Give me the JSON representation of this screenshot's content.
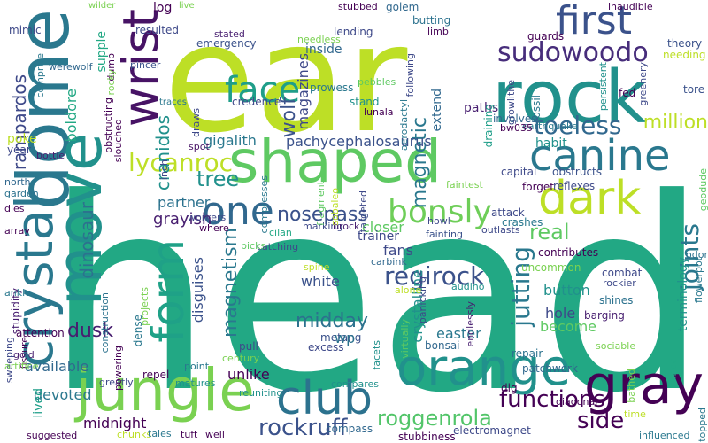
{
  "words": [
    {
      "text": "head",
      "color": "#22a884"
    },
    {
      "text": "ear",
      "color": "#bddf26"
    },
    {
      "text": "shaped",
      "color": "#5ec962"
    },
    {
      "text": "dome",
      "color": "#2a788e"
    },
    {
      "text": "rock",
      "color": "#21918c"
    },
    {
      "text": "jungle",
      "color": "#7ad151"
    },
    {
      "text": "orange",
      "color": "#21918c"
    },
    {
      "text": "canine",
      "color": "#2a788e"
    },
    {
      "text": "first",
      "color": "#3b528b"
    },
    {
      "text": "move",
      "color": "#21918c"
    },
    {
      "text": "crystal",
      "color": "#2a788e"
    },
    {
      "text": "club",
      "color": "#2c728e"
    },
    {
      "text": "gray",
      "color": "#440154"
    },
    {
      "text": "dark",
      "color": "#bddf26"
    },
    {
      "text": "wrist",
      "color": "#471365"
    },
    {
      "text": "form",
      "color": "#1fa187"
    },
    {
      "text": "one",
      "color": "#31688e"
    },
    {
      "text": "face",
      "color": "#1f9e89"
    },
    {
      "text": "sudowoodo",
      "color": "#472d7b"
    },
    {
      "text": "bonsly",
      "color": "#6ece58"
    },
    {
      "text": "lycanroc",
      "color": "#bddf26"
    },
    {
      "text": "rockruff",
      "color": "#3b528b"
    },
    {
      "text": "regirock",
      "color": "#3b528b"
    },
    {
      "text": "roggenrola",
      "color": "#52c569"
    },
    {
      "text": "functions",
      "color": "#440154"
    },
    {
      "text": "side",
      "color": "#440154"
    },
    {
      "text": "jutting",
      "color": "#2a788e"
    },
    {
      "text": "joints",
      "color": "#2a788e"
    },
    {
      "text": "tree",
      "color": "#21918c"
    },
    {
      "text": "toeless",
      "color": "#31688e"
    },
    {
      "text": "magnetic",
      "color": "#2a788e"
    },
    {
      "text": "magnetism",
      "color": "#2a788e"
    },
    {
      "text": "dinosaur",
      "color": "#2c728e"
    },
    {
      "text": "cranidos",
      "color": "#21918c"
    },
    {
      "text": "rampardos",
      "color": "#3e4989"
    },
    {
      "text": "nosepass",
      "color": "#3b528b"
    },
    {
      "text": "real",
      "color": "#5ec962"
    },
    {
      "text": "dusk",
      "color": "#481f70"
    },
    {
      "text": "midday",
      "color": "#2c728e"
    },
    {
      "text": "million",
      "color": "#bddf26"
    },
    {
      "text": "wolf",
      "color": "#3b528b"
    },
    {
      "text": "magazines",
      "color": "#3e4989"
    },
    {
      "text": "pachycephalosaurus",
      "color": "#3b528b"
    },
    {
      "text": "gigalith",
      "color": "#2a788e"
    },
    {
      "text": "boldore",
      "color": "#22a884"
    },
    {
      "text": "grayish",
      "color": "#481f70"
    },
    {
      "text": "partner",
      "color": "#2c728e"
    },
    {
      "text": "available",
      "color": "#31688e"
    },
    {
      "text": "devoted",
      "color": "#2a788e"
    },
    {
      "text": "midnight",
      "color": "#440154"
    },
    {
      "text": "crystalline",
      "color": "#21918c"
    },
    {
      "text": "easter",
      "color": "#2a788e"
    },
    {
      "text": "button",
      "color": "#21918c"
    },
    {
      "text": "hole",
      "color": "#3e4989"
    },
    {
      "text": "become",
      "color": "#5ec962"
    },
    {
      "text": "white",
      "color": "#3b528b"
    },
    {
      "text": "fans",
      "color": "#3e4989"
    },
    {
      "text": "closer",
      "color": "#5ec962"
    },
    {
      "text": "trainer",
      "color": "#3e4989"
    },
    {
      "text": "disguises",
      "color": "#3b528b"
    },
    {
      "text": "terminology",
      "color": "#21918c"
    },
    {
      "text": "lived",
      "color": "#1f9e89"
    },
    {
      "text": "unlike",
      "color": "#440154"
    },
    {
      "text": "habit",
      "color": "#21918c"
    },
    {
      "text": "paths",
      "color": "#481f70"
    },
    {
      "text": "inside",
      "color": "#31688e"
    },
    {
      "text": "prowess",
      "color": "#2a788e"
    },
    {
      "text": "emergency",
      "color": "#3b528b"
    },
    {
      "text": "resulted",
      "color": "#3e4989"
    },
    {
      "text": "supple",
      "color": "#22a884"
    },
    {
      "text": "log",
      "color": "#440154"
    },
    {
      "text": "extend",
      "color": "#31688e"
    },
    {
      "text": "lending",
      "color": "#3e4989"
    },
    {
      "text": "butting",
      "color": "#2c728e"
    },
    {
      "text": "golem",
      "color": "#31688e"
    },
    {
      "text": "guards",
      "color": "#440154"
    },
    {
      "text": "theory",
      "color": "#3b528b"
    },
    {
      "text": "needing",
      "color": "#bddf26"
    },
    {
      "text": "tore",
      "color": "#3b528b"
    },
    {
      "text": "fed",
      "color": "#440154"
    },
    {
      "text": "credence",
      "color": "#3e4989"
    },
    {
      "text": "stand",
      "color": "#21918c"
    },
    {
      "text": "fossil",
      "color": "#2a788e"
    },
    {
      "text": "draining",
      "color": "#1f9e89"
    },
    {
      "text": "involves",
      "color": "#31688e"
    },
    {
      "text": "capital",
      "color": "#3e4989"
    },
    {
      "text": "obstructs",
      "color": "#3b528b"
    },
    {
      "text": "forget",
      "color": "#440154"
    },
    {
      "text": "reflexes",
      "color": "#3e4989"
    },
    {
      "text": "attack",
      "color": "#3e4989"
    },
    {
      "text": "crashes",
      "color": "#2a788e"
    },
    {
      "text": "contributes",
      "color": "#440154"
    },
    {
      "text": "uncommon",
      "color": "#7ad151"
    },
    {
      "text": "combat",
      "color": "#3e4989"
    },
    {
      "text": "shines",
      "color": "#2c728e"
    },
    {
      "text": "barging",
      "color": "#481f70"
    },
    {
      "text": "repair",
      "color": "#2c728e"
    },
    {
      "text": "compass",
      "color": "#31688e"
    },
    {
      "text": "stubbiness",
      "color": "#440154"
    },
    {
      "text": "electromagnet",
      "color": "#3e4989"
    },
    {
      "text": "patchwork",
      "color": "#31688e"
    },
    {
      "text": "dig",
      "color": "#440154"
    },
    {
      "text": "bonsai",
      "color": "#31688e"
    },
    {
      "text": "metang",
      "color": "#3b528b"
    },
    {
      "text": "excess",
      "color": "#3e4989"
    },
    {
      "text": "pull",
      "color": "#3e4989"
    },
    {
      "text": "dense",
      "color": "#2a788e"
    },
    {
      "text": "point",
      "color": "#2a788e"
    },
    {
      "text": "repel",
      "color": "#440154"
    },
    {
      "text": "matures",
      "color": "#21918c"
    },
    {
      "text": "greatly",
      "color": "#3e4989"
    },
    {
      "text": "reuniting",
      "color": "#21918c"
    },
    {
      "text": "compares",
      "color": "#21918c"
    },
    {
      "text": "attention",
      "color": "#440154"
    },
    {
      "text": "poke",
      "color": "#bddf26"
    },
    {
      "text": "year",
      "color": "#3e4989"
    },
    {
      "text": "stupidity",
      "color": "#481f70"
    },
    {
      "text": "mimic",
      "color": "#3e4989"
    },
    {
      "text": "comprise",
      "color": "#2a788e"
    },
    {
      "text": "werewolf",
      "color": "#31688e"
    },
    {
      "text": "bottle",
      "color": "#481f70"
    },
    {
      "text": "north",
      "color": "#31688e"
    },
    {
      "text": "garden",
      "color": "#2c728e"
    },
    {
      "text": "dies",
      "color": "#440154"
    },
    {
      "text": "array",
      "color": "#440154"
    },
    {
      "text": "ankle",
      "color": "#2a788e"
    },
    {
      "text": "sweeping",
      "color": "#3e4989"
    },
    {
      "text": "fissure",
      "color": "#440154"
    },
    {
      "text": "gold",
      "color": "#481f70"
    },
    {
      "text": "artifice",
      "color": "#7ad151"
    },
    {
      "text": "suggested",
      "color": "#440154"
    },
    {
      "text": "chunks",
      "color": "#bddf26"
    },
    {
      "text": "tales",
      "color": "#2a788e"
    },
    {
      "text": "tuft",
      "color": "#440154"
    },
    {
      "text": "well",
      "color": "#440154"
    },
    {
      "text": "century",
      "color": "#7ad151"
    },
    {
      "text": "powering",
      "color": "#440154"
    },
    {
      "text": "construction",
      "color": "#2c728e"
    },
    {
      "text": "picks",
      "color": "#5ec962"
    },
    {
      "text": "catching",
      "color": "#3e4989"
    },
    {
      "text": "cilan",
      "color": "#22a884"
    },
    {
      "text": "where",
      "color": "#440154"
    },
    {
      "text": "workers",
      "color": "#3e4989"
    },
    {
      "text": "marking",
      "color": "#3e4989"
    },
    {
      "text": "brock",
      "color": "#481f70"
    },
    {
      "text": "howl",
      "color": "#3e4989"
    },
    {
      "text": "carbink",
      "color": "#31688e"
    },
    {
      "text": "fainting",
      "color": "#3b528b"
    },
    {
      "text": "outlasts",
      "color": "#3e4989"
    },
    {
      "text": "faintest",
      "color": "#7ad151"
    },
    {
      "text": "targeted",
      "color": "#3e4989"
    },
    {
      "text": "fragment",
      "color": "#5ec962"
    },
    {
      "text": "sobaleo",
      "color": "#bddf26"
    },
    {
      "text": "compresses",
      "color": "#2a788e"
    },
    {
      "text": "spot",
      "color": "#471365"
    },
    {
      "text": "draws",
      "color": "#3e4989"
    },
    {
      "text": "inch",
      "color": "#3e4989"
    },
    {
      "text": "traces",
      "color": "#2a788e"
    },
    {
      "text": "pincer",
      "color": "#3b528b"
    },
    {
      "text": "stated",
      "color": "#481f70"
    },
    {
      "text": "needless",
      "color": "#7ad151"
    },
    {
      "text": "stubbed",
      "color": "#440154"
    },
    {
      "text": "live",
      "color": "#7ad151"
    },
    {
      "text": "wilder",
      "color": "#7ad151"
    },
    {
      "text": "pebbles",
      "color": "#5ec962"
    },
    {
      "text": "lunala",
      "color": "#440154"
    },
    {
      "text": "aerodactyl",
      "color": "#2a788e"
    },
    {
      "text": "following",
      "color": "#3e4989"
    },
    {
      "text": "limb",
      "color": "#440154"
    },
    {
      "text": "inaudible",
      "color": "#440154"
    },
    {
      "text": "growlithe",
      "color": "#3e4989"
    },
    {
      "text": "persistent",
      "color": "#21918c"
    },
    {
      "text": "greenery",
      "color": "#3e4989"
    },
    {
      "text": "earthquake",
      "color": "#2a788e"
    },
    {
      "text": "bw035",
      "color": "#440154"
    },
    {
      "text": "geodude",
      "color": "#5ec962"
    },
    {
      "text": "flowerpot",
      "color": "#2a788e"
    },
    {
      "text": "odor",
      "color": "#2c728e"
    },
    {
      "text": "rockier",
      "color": "#3e4989"
    },
    {
      "text": "sociable",
      "color": "#7ad151"
    },
    {
      "text": "knee",
      "color": "#22a884"
    },
    {
      "text": "topped",
      "color": "#2a788e"
    },
    {
      "text": "influenced",
      "color": "#2a788e"
    },
    {
      "text": "time",
      "color": "#bddf26"
    },
    {
      "text": "bathed",
      "color": "#7ad151"
    },
    {
      "text": "diagonal",
      "color": "#440154"
    },
    {
      "text": "audino",
      "color": "#21918c"
    },
    {
      "text": "endlessly",
      "color": "#481f70"
    },
    {
      "text": "panicking",
      "color": "#3e4989"
    },
    {
      "text": "virtually",
      "color": "#5ec962"
    },
    {
      "text": "facets",
      "color": "#21918c"
    },
    {
      "text": "spine",
      "color": "#bddf26"
    },
    {
      "text": "projects",
      "color": "#7ad151"
    },
    {
      "text": "slouched",
      "color": "#440154"
    },
    {
      "text": "obstructing",
      "color": "#440154"
    },
    {
      "text": "dump",
      "color": "#440154"
    },
    {
      "text": "rocky",
      "color": "#7ad151"
    },
    {
      "text": "wp",
      "color": "#2c728e"
    },
    {
      "text": "alone",
      "color": "#bddf26"
    }
  ]
}
